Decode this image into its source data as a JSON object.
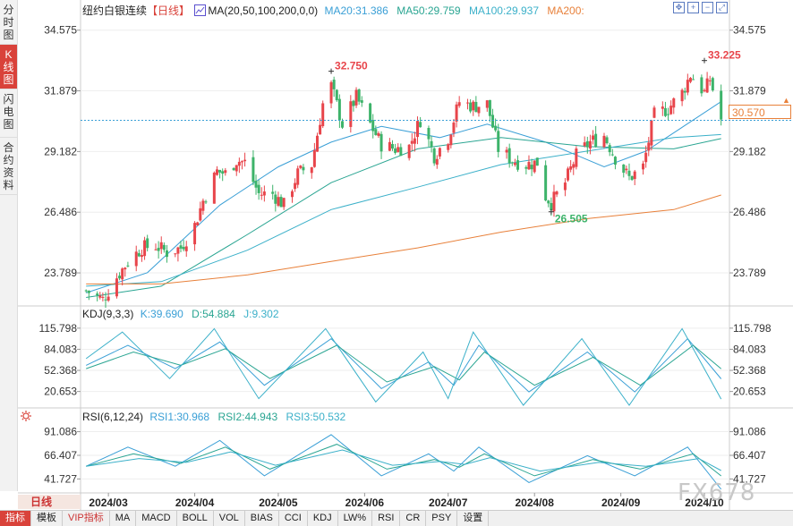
{
  "sidebar": {
    "tabs": [
      "分时图",
      "K线图",
      "闪电图",
      "合约资料"
    ],
    "active_index": 1
  },
  "header": {
    "title": "纽约白银连续",
    "period": "【日线】",
    "ma_label": "MA(20,50,100,200,0,0)",
    "ma20": "MA20:31.386",
    "ma50": "MA50:29.759",
    "ma100": "MA100:29.937",
    "ma200": "MA200:"
  },
  "kdj_header": {
    "label": "KDJ(9,3,3)",
    "k": "K:39.690",
    "d": "D:54.884",
    "j": "J:9.302"
  },
  "rsi_header": {
    "label": "RSI(6,12,24)",
    "rsi1": "RSI1:30.968",
    "rsi2": "RSI2:44.943",
    "rsi3": "RSI3:50.532"
  },
  "current_price": "30.570",
  "period_label": "日线",
  "watermark": "FX678",
  "toolbar_icons": [
    "move-icon",
    "zoom-in-icon",
    "zoom-out-icon",
    "fullscreen-icon"
  ],
  "bottom_tabs": [
    "指标",
    "模板",
    "VIP指标",
    "MA",
    "MACD",
    "BOLL",
    "VOL",
    "BIAS",
    "CCI",
    "KDJ",
    "LW%",
    "RSI",
    "CR",
    "PSY",
    "设置"
  ],
  "colors": {
    "up": "#e8454b",
    "down": "#3db36a",
    "ma20": "#3a9fd6",
    "ma50": "#2aa592",
    "ma100": "#3bb0c9",
    "ma200": "#e8803a",
    "accent": "#d9423a"
  },
  "chart_data": [
    {
      "type": "candlestick",
      "title": "纽约白银连续【日线】",
      "y_ticks": [
        34.575,
        31.879,
        29.182,
        26.486,
        23.789
      ],
      "ylim": [
        22.4,
        35.2
      ],
      "x_ticks": [
        "2024/03",
        "2024/04",
        "2024/05",
        "2024/06",
        "2024/07",
        "2024/08",
        "2024/09",
        "2024/10"
      ],
      "annotations": [
        {
          "text": "32.750",
          "kind": "high"
        },
        {
          "text": "33.225",
          "kind": "high"
        },
        {
          "text": "26.505",
          "kind": "low"
        }
      ],
      "close_path": [
        [
          "2024-02-22",
          23.0
        ],
        [
          "2024-02-28",
          22.6
        ],
        [
          "2024-03-04",
          23.6
        ],
        [
          "2024-03-08",
          24.3
        ],
        [
          "2024-03-13",
          24.9
        ],
        [
          "2024-03-18",
          25.0
        ],
        [
          "2024-03-22",
          24.7
        ],
        [
          "2024-03-27",
          24.9
        ],
        [
          "2024-04-01",
          25.9
        ],
        [
          "2024-04-04",
          27.0
        ],
        [
          "2024-04-09",
          28.3
        ],
        [
          "2024-04-12",
          28.2
        ],
        [
          "2024-04-16",
          28.8
        ],
        [
          "2024-04-19",
          28.7
        ],
        [
          "2024-04-24",
          27.3
        ],
        [
          "2024-04-29",
          27.3
        ],
        [
          "2024-05-03",
          26.8
        ],
        [
          "2024-05-08",
          28.2
        ],
        [
          "2024-05-13",
          28.6
        ],
        [
          "2024-05-17",
          31.3
        ],
        [
          "2024-05-20",
          32.1
        ],
        [
          "2024-05-24",
          30.4
        ],
        [
          "2024-05-29",
          31.6
        ],
        [
          "2024-06-03",
          30.4
        ],
        [
          "2024-06-07",
          29.5
        ],
        [
          "2024-06-12",
          29.3
        ],
        [
          "2024-06-17",
          29.4
        ],
        [
          "2024-06-21",
          30.6
        ],
        [
          "2024-06-26",
          29.0
        ],
        [
          "2024-07-01",
          29.8
        ],
        [
          "2024-07-05",
          31.4
        ],
        [
          "2024-07-10",
          31.2
        ],
        [
          "2024-07-15",
          31.3
        ],
        [
          "2024-07-19",
          29.3
        ],
        [
          "2024-07-24",
          28.8
        ],
        [
          "2024-07-29",
          28.6
        ],
        [
          "2024-08-02",
          28.7
        ],
        [
          "2024-08-05",
          27.2
        ],
        [
          "2024-08-07",
          26.9
        ],
        [
          "2024-08-12",
          27.8
        ],
        [
          "2024-08-16",
          29.0
        ],
        [
          "2024-08-21",
          29.6
        ],
        [
          "2024-08-26",
          29.9
        ],
        [
          "2024-08-30",
          28.9
        ],
        [
          "2024-09-04",
          28.0
        ],
        [
          "2024-09-09",
          28.5
        ],
        [
          "2024-09-13",
          30.8
        ],
        [
          "2024-09-18",
          31.1
        ],
        [
          "2024-09-23",
          31.8
        ],
        [
          "2024-09-26",
          32.6
        ],
        [
          "2024-10-01",
          31.8
        ],
        [
          "2024-10-03",
          32.4
        ],
        [
          "2024-10-07",
          30.6
        ]
      ],
      "ma_series": [
        {
          "name": "MA20",
          "values": [
            [
              "2024-02-22",
              22.9
            ],
            [
              "2024-03-15",
              23.8
            ],
            [
              "2024-04-10",
              26.8
            ],
            [
              "2024-05-01",
              28.5
            ],
            [
              "2024-05-20",
              29.6
            ],
            [
              "2024-06-07",
              30.3
            ],
            [
              "2024-06-28",
              29.8
            ],
            [
              "2024-07-15",
              30.4
            ],
            [
              "2024-08-05",
              29.6
            ],
            [
              "2024-08-26",
              28.5
            ],
            [
              "2024-09-10",
              29.2
            ],
            [
              "2024-09-26",
              30.5
            ],
            [
              "2024-10-07",
              31.4
            ]
          ]
        },
        {
          "name": "MA50",
          "values": [
            [
              "2024-02-22",
              22.7
            ],
            [
              "2024-03-20",
              23.2
            ],
            [
              "2024-04-20",
              25.5
            ],
            [
              "2024-05-20",
              27.8
            ],
            [
              "2024-06-20",
              29.3
            ],
            [
              "2024-07-20",
              29.8
            ],
            [
              "2024-08-20",
              29.4
            ],
            [
              "2024-09-20",
              29.3
            ],
            [
              "2024-10-07",
              29.759
            ]
          ]
        },
        {
          "name": "MA100",
          "values": [
            [
              "2024-02-22",
              23.2
            ],
            [
              "2024-03-20",
              23.4
            ],
            [
              "2024-04-20",
              24.8
            ],
            [
              "2024-05-20",
              26.6
            ],
            [
              "2024-06-20",
              27.6
            ],
            [
              "2024-07-20",
              28.6
            ],
            [
              "2024-08-20",
              29.2
            ],
            [
              "2024-09-20",
              29.8
            ],
            [
              "2024-10-07",
              29.937
            ]
          ]
        },
        {
          "name": "MA200",
          "values": [
            [
              "2024-02-22",
              23.3
            ],
            [
              "2024-03-20",
              23.3
            ],
            [
              "2024-04-20",
              23.7
            ],
            [
              "2024-05-20",
              24.3
            ],
            [
              "2024-06-20",
              24.9
            ],
            [
              "2024-07-20",
              25.6
            ],
            [
              "2024-08-20",
              26.2
            ],
            [
              "2024-09-20",
              26.6
            ],
            [
              "2024-10-07",
              27.25
            ]
          ]
        }
      ]
    },
    {
      "type": "line",
      "title": "KDJ(9,3,3)",
      "y_ticks": [
        115.798,
        84.083,
        52.368,
        20.653
      ],
      "ylim": [
        0,
        125
      ],
      "series": [
        {
          "name": "K",
          "values": [
            [
              "2024-02-22",
              60
            ],
            [
              "2024-03-08",
              90
            ],
            [
              "2024-03-25",
              55
            ],
            [
              "2024-04-10",
              95
            ],
            [
              "2024-04-26",
              30
            ],
            [
              "2024-05-20",
              100
            ],
            [
              "2024-06-07",
              25
            ],
            [
              "2024-06-24",
              65
            ],
            [
              "2024-07-03",
              30
            ],
            [
              "2024-07-12",
              90
            ],
            [
              "2024-07-30",
              20
            ],
            [
              "2024-08-20",
              80
            ],
            [
              "2024-09-06",
              20
            ],
            [
              "2024-09-25",
              100
            ],
            [
              "2024-10-07",
              39.69
            ]
          ]
        },
        {
          "name": "D",
          "values": [
            [
              "2024-02-22",
              55
            ],
            [
              "2024-03-10",
              80
            ],
            [
              "2024-03-27",
              60
            ],
            [
              "2024-04-12",
              85
            ],
            [
              "2024-04-28",
              40
            ],
            [
              "2024-05-22",
              90
            ],
            [
              "2024-06-09",
              35
            ],
            [
              "2024-06-26",
              58
            ],
            [
              "2024-07-05",
              38
            ],
            [
              "2024-07-14",
              80
            ],
            [
              "2024-08-01",
              30
            ],
            [
              "2024-08-22",
              72
            ],
            [
              "2024-09-08",
              30
            ],
            [
              "2024-09-27",
              90
            ],
            [
              "2024-10-07",
              54.884
            ]
          ]
        },
        {
          "name": "J",
          "values": [
            [
              "2024-02-22",
              70
            ],
            [
              "2024-03-06",
              110
            ],
            [
              "2024-03-23",
              40
            ],
            [
              "2024-04-08",
              115
            ],
            [
              "2024-04-24",
              10
            ],
            [
              "2024-05-18",
              115
            ],
            [
              "2024-06-05",
              5
            ],
            [
              "2024-06-22",
              80
            ],
            [
              "2024-07-01",
              10
            ],
            [
              "2024-07-10",
              110
            ],
            [
              "2024-07-28",
              0
            ],
            [
              "2024-08-18",
              100
            ],
            [
              "2024-09-04",
              0
            ],
            [
              "2024-09-23",
              115
            ],
            [
              "2024-10-07",
              9.302
            ]
          ]
        }
      ]
    },
    {
      "type": "line",
      "title": "RSI(6,12,24)",
      "y_ticks": [
        91.086,
        66.407,
        41.727
      ],
      "ylim": [
        30,
        100
      ],
      "series": [
        {
          "name": "RSI1",
          "values": [
            [
              "2024-02-22",
              55
            ],
            [
              "2024-03-08",
              75
            ],
            [
              "2024-03-25",
              55
            ],
            [
              "2024-04-10",
              82
            ],
            [
              "2024-04-26",
              45
            ],
            [
              "2024-05-20",
              88
            ],
            [
              "2024-06-07",
              45
            ],
            [
              "2024-06-24",
              68
            ],
            [
              "2024-07-03",
              50
            ],
            [
              "2024-07-12",
              75
            ],
            [
              "2024-07-30",
              38
            ],
            [
              "2024-08-20",
              66
            ],
            [
              "2024-09-06",
              45
            ],
            [
              "2024-09-25",
              75
            ],
            [
              "2024-10-07",
              30.968
            ]
          ]
        },
        {
          "name": "RSI2",
          "values": [
            [
              "2024-02-22",
              55
            ],
            [
              "2024-03-10",
              68
            ],
            [
              "2024-03-27",
              58
            ],
            [
              "2024-04-12",
              75
            ],
            [
              "2024-04-28",
              52
            ],
            [
              "2024-05-22",
              78
            ],
            [
              "2024-06-09",
              52
            ],
            [
              "2024-06-26",
              62
            ],
            [
              "2024-07-05",
              54
            ],
            [
              "2024-07-14",
              68
            ],
            [
              "2024-08-01",
              45
            ],
            [
              "2024-08-22",
              62
            ],
            [
              "2024-09-08",
              52
            ],
            [
              "2024-09-27",
              68
            ],
            [
              "2024-10-07",
              44.943
            ]
          ]
        },
        {
          "name": "RSI3",
          "values": [
            [
              "2024-02-22",
              55
            ],
            [
              "2024-03-12",
              63
            ],
            [
              "2024-03-29",
              59
            ],
            [
              "2024-04-14",
              70
            ],
            [
              "2024-04-30",
              56
            ],
            [
              "2024-05-24",
              72
            ],
            [
              "2024-06-11",
              56
            ],
            [
              "2024-06-28",
              60
            ],
            [
              "2024-07-07",
              57
            ],
            [
              "2024-07-16",
              64
            ],
            [
              "2024-08-03",
              50
            ],
            [
              "2024-08-24",
              59
            ],
            [
              "2024-09-10",
              55
            ],
            [
              "2024-09-29",
              63
            ],
            [
              "2024-10-07",
              50.532
            ]
          ]
        }
      ]
    }
  ]
}
